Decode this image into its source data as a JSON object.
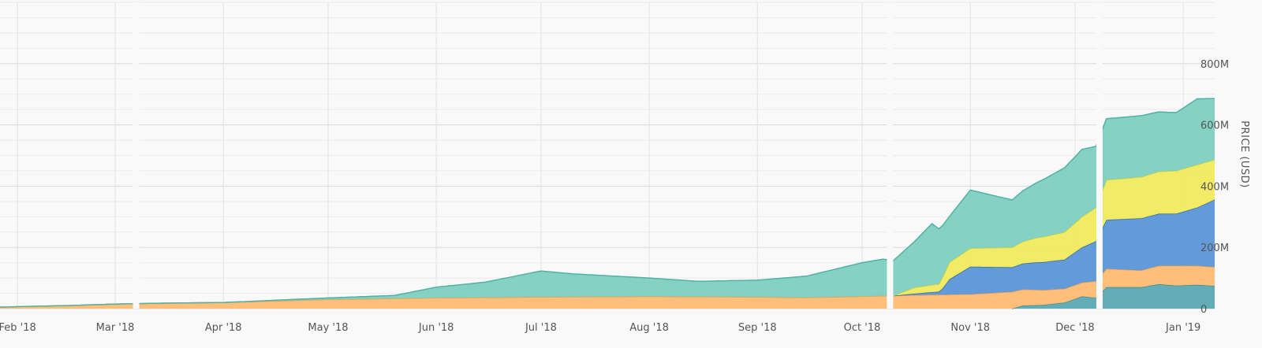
{
  "chart_data": {
    "type": "area",
    "stacked": true,
    "ylabel": "PRICE (USD)",
    "ylim": [
      0,
      1000000000
    ],
    "y_ticks": [
      {
        "value": 0,
        "label": "0"
      },
      {
        "value": 200000000,
        "label": "200M"
      },
      {
        "value": 400000000,
        "label": "400M"
      },
      {
        "value": 600000000,
        "label": "600M"
      },
      {
        "value": 800000000,
        "label": "800M"
      }
    ],
    "x_ticks": [
      {
        "date": "2018-02-01",
        "label": "Feb '18"
      },
      {
        "date": "2018-03-01",
        "label": "Mar '18"
      },
      {
        "date": "2018-04-01",
        "label": "Apr '18"
      },
      {
        "date": "2018-05-01",
        "label": "May '18"
      },
      {
        "date": "2018-06-01",
        "label": "Jun '18"
      },
      {
        "date": "2018-07-01",
        "label": "Jul '18"
      },
      {
        "date": "2018-08-01",
        "label": "Aug '18"
      },
      {
        "date": "2018-09-01",
        "label": "Sep '18"
      },
      {
        "date": "2018-10-01",
        "label": "Oct '18"
      },
      {
        "date": "2018-11-01",
        "label": "Nov '18"
      },
      {
        "date": "2018-12-01",
        "label": "Dec '18"
      },
      {
        "date": "2019-01-01",
        "label": "Jan '19"
      }
    ],
    "x_range": [
      "2018-01-27",
      "2019-01-10"
    ],
    "grid": true,
    "gaps": [
      "2018-03-07",
      "2018-10-09",
      "2018-12-08"
    ],
    "series": [
      {
        "color": "#5aa9b3",
        "points": [
          [
            "2018-11-13",
            0
          ],
          [
            "2018-11-16",
            10000000
          ],
          [
            "2018-11-22",
            12000000
          ],
          [
            "2018-11-28",
            20000000
          ],
          [
            "2018-12-03",
            40000000
          ],
          [
            "2018-12-07",
            35000000
          ],
          [
            "2018-12-10",
            70000000
          ],
          [
            "2018-12-20",
            70000000
          ],
          [
            "2018-12-25",
            80000000
          ],
          [
            "2018-12-30",
            75000000
          ],
          [
            "2019-01-05",
            78000000
          ],
          [
            "2019-01-10",
            74000000
          ]
        ]
      },
      {
        "color": "#ffba73",
        "points": [
          [
            "2018-01-27",
            5000000
          ],
          [
            "2018-02-15",
            10000000
          ],
          [
            "2018-03-01",
            15000000
          ],
          [
            "2018-03-15",
            18000000
          ],
          [
            "2018-04-01",
            20000000
          ],
          [
            "2018-05-01",
            30000000
          ],
          [
            "2018-06-01",
            35000000
          ],
          [
            "2018-07-01",
            38000000
          ],
          [
            "2018-08-01",
            40000000
          ],
          [
            "2018-09-01",
            38000000
          ],
          [
            "2018-09-15",
            36000000
          ],
          [
            "2018-10-01",
            40000000
          ],
          [
            "2018-10-20",
            45000000
          ],
          [
            "2018-11-01",
            47000000
          ],
          [
            "2018-11-13",
            55000000
          ],
          [
            "2018-11-20",
            50000000
          ],
          [
            "2018-11-28",
            45000000
          ],
          [
            "2018-12-03",
            45000000
          ],
          [
            "2018-12-07",
            55000000
          ],
          [
            "2018-12-10",
            60000000
          ],
          [
            "2018-12-20",
            55000000
          ],
          [
            "2018-12-30",
            65000000
          ],
          [
            "2019-01-05",
            62000000
          ],
          [
            "2019-01-10",
            62000000
          ]
        ]
      },
      {
        "color": "#5b96d8",
        "points": [
          [
            "2018-10-10",
            0
          ],
          [
            "2018-10-16",
            5000000
          ],
          [
            "2018-10-23",
            10000000
          ],
          [
            "2018-10-24",
            20000000
          ],
          [
            "2018-10-26",
            50000000
          ],
          [
            "2018-11-01",
            90000000
          ],
          [
            "2018-11-13",
            80000000
          ],
          [
            "2018-11-20",
            90000000
          ],
          [
            "2018-11-28",
            95000000
          ],
          [
            "2018-12-03",
            115000000
          ],
          [
            "2018-12-07",
            130000000
          ],
          [
            "2018-12-10",
            160000000
          ],
          [
            "2018-12-20",
            170000000
          ],
          [
            "2018-12-30",
            170000000
          ],
          [
            "2019-01-05",
            190000000
          ],
          [
            "2019-01-10",
            220000000
          ]
        ]
      },
      {
        "color": "#f0ea5e",
        "points": [
          [
            "2018-10-10",
            0
          ],
          [
            "2018-10-16",
            20000000
          ],
          [
            "2018-10-23",
            25000000
          ],
          [
            "2018-10-26",
            55000000
          ],
          [
            "2018-11-01",
            60000000
          ],
          [
            "2018-11-13",
            65000000
          ],
          [
            "2018-11-20",
            80000000
          ],
          [
            "2018-11-28",
            90000000
          ],
          [
            "2018-12-03",
            100000000
          ],
          [
            "2018-12-07",
            110000000
          ],
          [
            "2018-12-10",
            130000000
          ],
          [
            "2018-12-20",
            135000000
          ],
          [
            "2018-12-30",
            140000000
          ],
          [
            "2019-01-05",
            140000000
          ],
          [
            "2019-01-10",
            130000000
          ]
        ]
      },
      {
        "color": "#7ecfc0",
        "points": [
          [
            "2018-01-27",
            0
          ],
          [
            "2018-03-15",
            0
          ],
          [
            "2018-04-01",
            0
          ],
          [
            "2018-05-01",
            5000000
          ],
          [
            "2018-05-20",
            10000000
          ],
          [
            "2018-06-01",
            35000000
          ],
          [
            "2018-06-15",
            50000000
          ],
          [
            "2018-07-01",
            85000000
          ],
          [
            "2018-07-10",
            75000000
          ],
          [
            "2018-08-01",
            60000000
          ],
          [
            "2018-08-15",
            50000000
          ],
          [
            "2018-09-01",
            55000000
          ],
          [
            "2018-09-15",
            70000000
          ],
          [
            "2018-10-01",
            110000000
          ],
          [
            "2018-10-07",
            120000000
          ],
          [
            "2018-10-10",
            115000000
          ],
          [
            "2018-10-16",
            150000000
          ],
          [
            "2018-10-21",
            200000000
          ],
          [
            "2018-10-23",
            180000000
          ],
          [
            "2018-10-26",
            150000000
          ],
          [
            "2018-11-01",
            190000000
          ],
          [
            "2018-11-13",
            155000000
          ],
          [
            "2018-11-20",
            180000000
          ],
          [
            "2018-11-28",
            210000000
          ],
          [
            "2018-12-03",
            220000000
          ],
          [
            "2018-12-07",
            200000000
          ],
          [
            "2018-12-10",
            200000000
          ],
          [
            "2018-12-20",
            200000000
          ],
          [
            "2018-12-30",
            190000000
          ],
          [
            "2019-01-05",
            215000000
          ],
          [
            "2019-01-10",
            200000000
          ]
        ]
      }
    ]
  }
}
